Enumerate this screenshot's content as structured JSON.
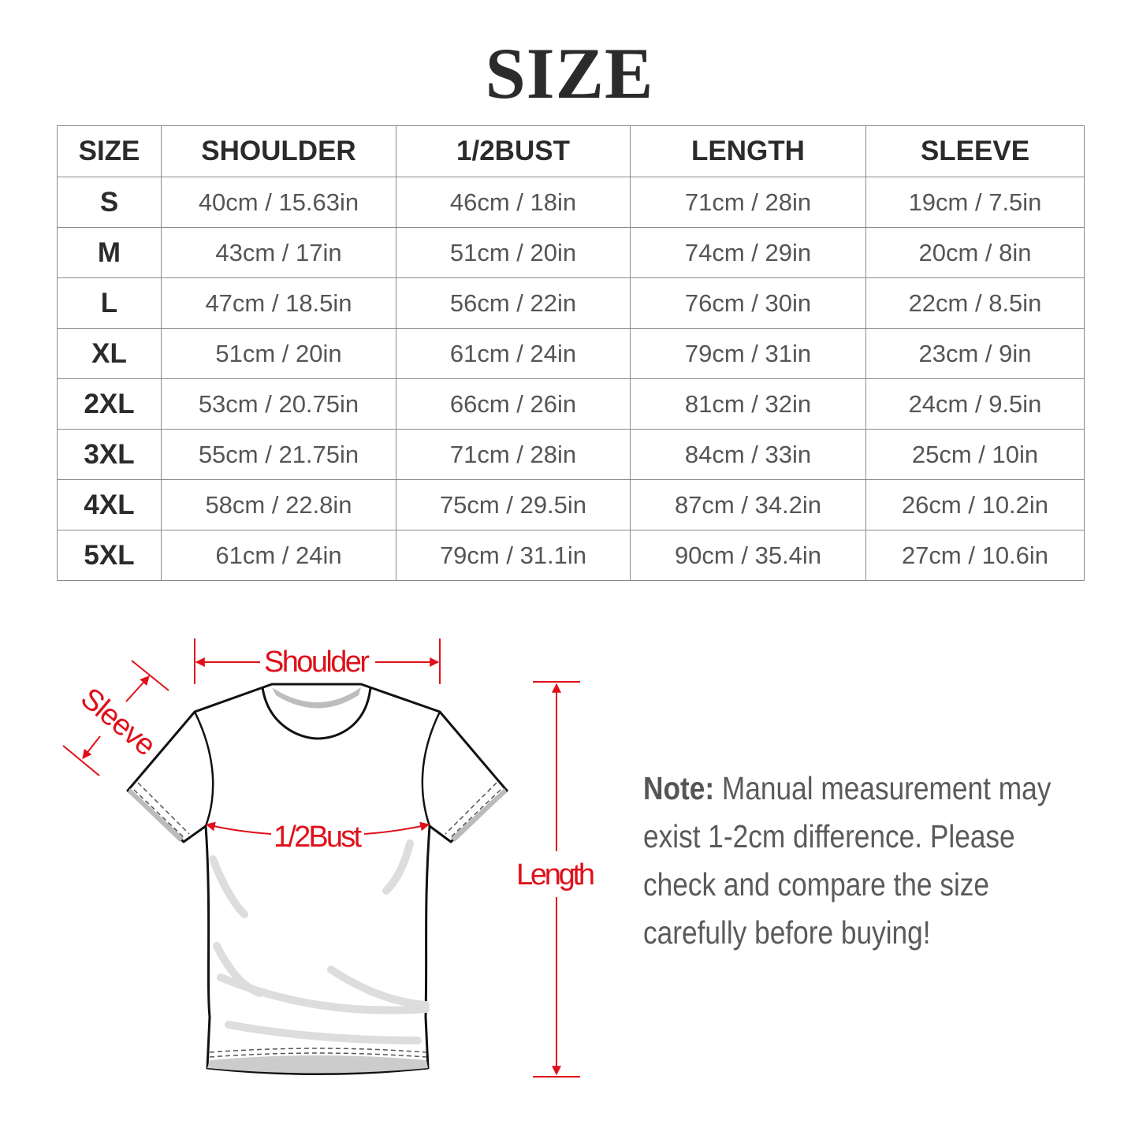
{
  "title": "SIZE",
  "table": {
    "headers": [
      "SIZE",
      "SHOULDER",
      "1/2BUST",
      "LENGTH",
      "SLEEVE"
    ],
    "rows": [
      [
        "S",
        "40cm / 15.63in",
        "46cm / 18in",
        "71cm / 28in",
        "19cm / 7.5in"
      ],
      [
        "M",
        "43cm / 17in",
        "51cm / 20in",
        "74cm / 29in",
        "20cm / 8in"
      ],
      [
        "L",
        "47cm / 18.5in",
        "56cm / 22in",
        "76cm / 30in",
        "22cm / 8.5in"
      ],
      [
        "XL",
        "51cm / 20in",
        "61cm / 24in",
        "79cm / 31in",
        "23cm / 9in"
      ],
      [
        "2XL",
        "53cm / 20.75in",
        "66cm / 26in",
        "81cm / 32in",
        "24cm / 9.5in"
      ],
      [
        "3XL",
        "55cm / 21.75in",
        "71cm / 28in",
        "84cm / 33in",
        "25cm / 10in"
      ],
      [
        "4XL",
        "58cm / 22.8in",
        "75cm / 29.5in",
        "87cm / 34.2in",
        "26cm / 10.2in"
      ],
      [
        "5XL",
        "61cm / 24in",
        "79cm / 31.1in",
        "90cm / 35.4in",
        "27cm / 10.6in"
      ]
    ]
  },
  "diagram": {
    "labels": {
      "shoulder": "Shoulder",
      "sleeve": "Sleeve",
      "bust": "1/2Bust",
      "length": "Length"
    },
    "accent_color": "#e0101a",
    "icon": "t-shirt-illustration"
  },
  "note": {
    "label": "Note:",
    "text": "Manual measurement may exist 1-2cm difference. Please check and compare the size carefully before buying!"
  }
}
